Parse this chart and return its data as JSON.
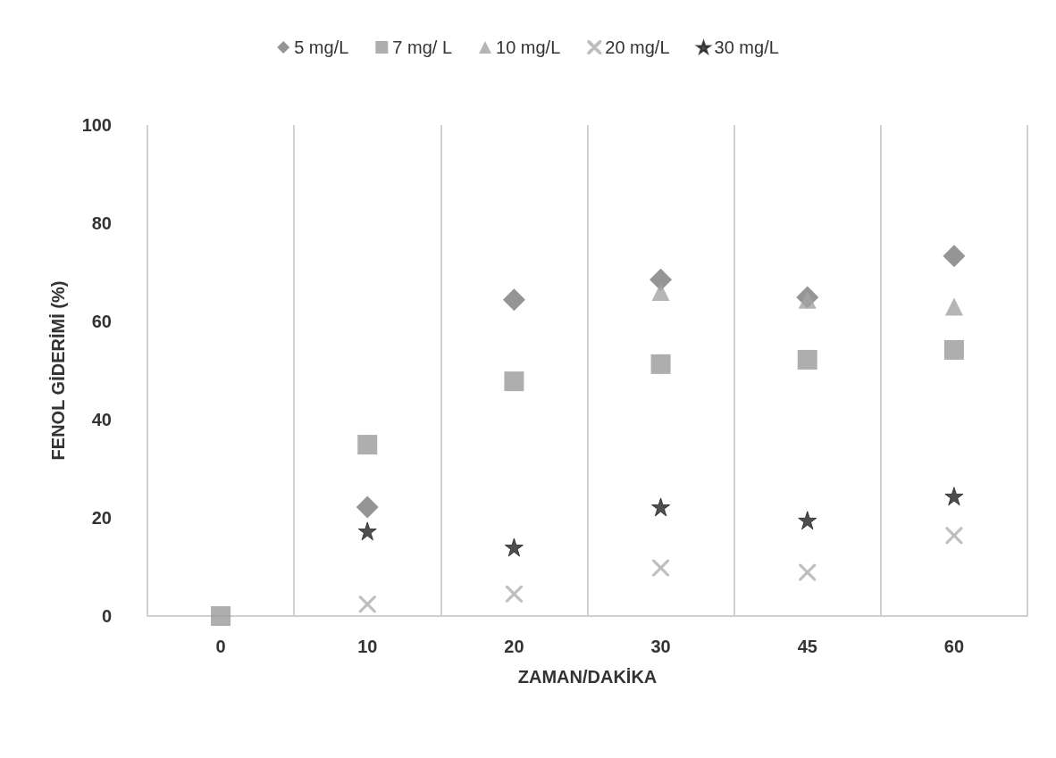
{
  "chart_data": {
    "type": "scatter",
    "xlabel": "ZAMAN/DAKİKA",
    "ylabel": "FENOL GİDERİMİ (%)",
    "categories": [
      "0",
      "10",
      "20",
      "30",
      "45",
      "60"
    ],
    "series": [
      {
        "name": "5 mg/L",
        "color": "#7a7a7a",
        "marker": "diamond",
        "values": [
          null,
          22.2,
          64.4,
          68.5,
          64.9,
          73.3
        ]
      },
      {
        "name": "7 mg/ L",
        "color": "#9a9a9a",
        "marker": "square",
        "values": [
          0,
          34.9,
          47.8,
          51.3,
          52.2,
          54.2
        ]
      },
      {
        "name": "10 mg/L",
        "color": "#a3a3a3",
        "marker": "triangle",
        "values": [
          null,
          null,
          null,
          66,
          64.4,
          63
        ]
      },
      {
        "name": "20 mg/L",
        "color": "#b8b8b8",
        "marker": "cross",
        "values": [
          null,
          2.4,
          4.5,
          9.8,
          8.9,
          16.4
        ]
      },
      {
        "name": "30 mg/L",
        "color": "#222222",
        "marker": "star",
        "values": [
          null,
          17.3,
          14,
          22.2,
          19.5,
          24.4
        ]
      }
    ],
    "ylim": [
      0,
      100
    ],
    "yticks": [
      0,
      20,
      40,
      60,
      80,
      100
    ],
    "grid": "x",
    "legend": "top"
  }
}
